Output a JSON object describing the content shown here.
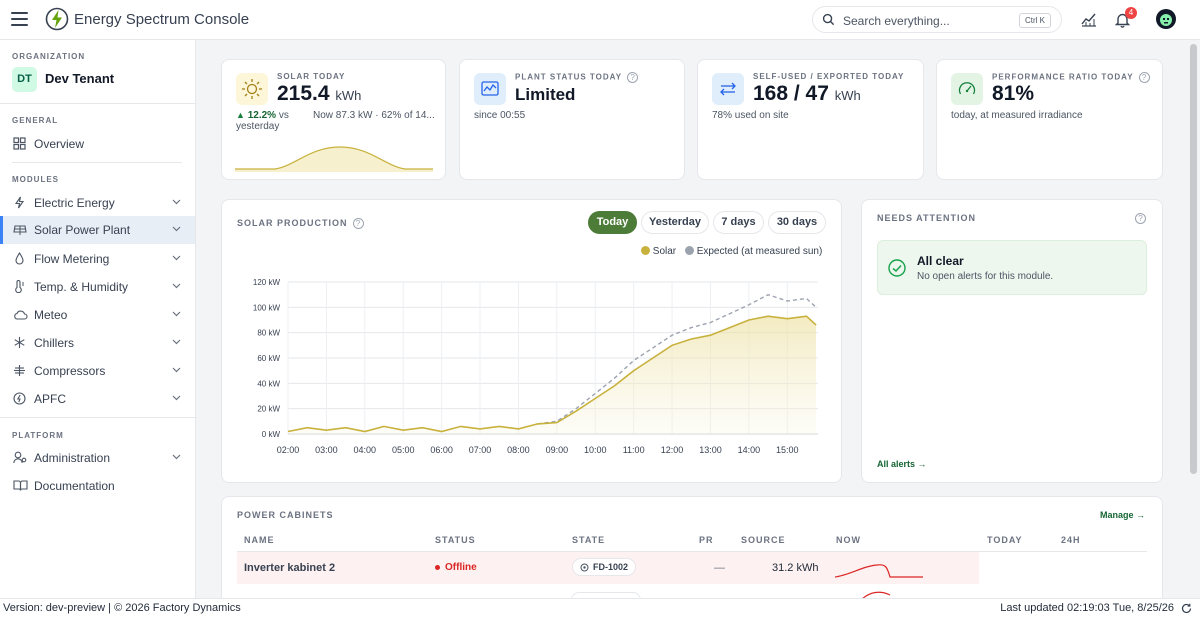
{
  "app": {
    "title": "Energy Spectrum Console"
  },
  "search": {
    "placeholder": "Search everything...",
    "shortcut": "Ctrl K"
  },
  "notifications": {
    "count": "4"
  },
  "sidebar": {
    "org_label": "ORGANIZATION",
    "tenant_initials": "DT",
    "tenant_name": "Dev Tenant",
    "general_label": "GENERAL",
    "overview": "Overview",
    "modules_label": "MODULES",
    "modules": [
      "Electric Energy",
      "Solar Power Plant",
      "Flow Metering",
      "Temp. & Humidity",
      "Meteo",
      "Chillers",
      "Compressors",
      "APFC"
    ],
    "platform_label": "PLATFORM",
    "administration": "Administration",
    "documentation": "Documentation"
  },
  "kpis": {
    "solar": {
      "label": "SOLAR TODAY",
      "value": "215.4",
      "unit": "kWh",
      "delta": "12.2%",
      "delta_suffix": "vs",
      "delta_line2": "yesterday",
      "now": "Now 87.3 kW · 62% of 14..."
    },
    "status": {
      "label": "PLANT STATUS TODAY",
      "value": "Limited",
      "sub": "since 00:55"
    },
    "self": {
      "label": "SELF-USED / EXPORTED TODAY",
      "value": "168 / 47",
      "unit": "kWh",
      "sub": "78% used on site"
    },
    "pr": {
      "label": "PERFORMANCE RATIO TODAY",
      "value": "81%",
      "sub": "today, at measured irradiance"
    }
  },
  "production": {
    "title": "SOLAR PRODUCTION",
    "tabs": [
      "Today",
      "Yesterday",
      "7 days",
      "30 days"
    ],
    "active_tab": "Today",
    "legend": [
      "Solar",
      "Expected (at measured sun)"
    ]
  },
  "chart_data": {
    "type": "line",
    "ylabel": "",
    "xlabel": "",
    "ylim": [
      0,
      120
    ],
    "y_ticks": [
      "0 kW",
      "20 kW",
      "40 kW",
      "60 kW",
      "80 kW",
      "100 kW",
      "120 kW"
    ],
    "x_ticks": [
      "02:00",
      "03:00",
      "04:00",
      "05:00",
      "06:00",
      "07:00",
      "08:00",
      "09:00",
      "10:00",
      "11:00",
      "12:00",
      "13:00",
      "14:00",
      "15:00"
    ],
    "series": [
      {
        "name": "Solar",
        "color": "#c8b13c",
        "x": [
          2.0,
          2.5,
          3.0,
          3.5,
          4.0,
          4.5,
          5.0,
          5.5,
          6.0,
          6.5,
          7.0,
          7.5,
          8.0,
          8.5,
          9.0,
          9.5,
          10.0,
          10.5,
          11.0,
          11.5,
          12.0,
          12.5,
          13.0,
          13.5,
          14.0,
          14.5,
          15.0,
          15.5,
          15.75
        ],
        "y": [
          2,
          5,
          3,
          5,
          2,
          6,
          3,
          5,
          2,
          6,
          4,
          6,
          4,
          8,
          9,
          18,
          28,
          38,
          50,
          60,
          70,
          75,
          78,
          84,
          90,
          93,
          91,
          93,
          86
        ]
      },
      {
        "name": "Expected (at measured sun)",
        "color": "#9ca3af",
        "dashed": true,
        "x": [
          8.5,
          9.0,
          9.5,
          10.0,
          10.5,
          11.0,
          11.5,
          12.0,
          12.5,
          13.0,
          13.5,
          14.0,
          14.5,
          15.0,
          15.5,
          15.75
        ],
        "y": [
          8,
          10,
          20,
          32,
          44,
          58,
          68,
          78,
          84,
          88,
          95,
          102,
          110,
          105,
          107,
          100
        ]
      }
    ],
    "grid": true
  },
  "attention": {
    "title": "NEEDS ATTENTION",
    "status_title": "All clear",
    "status_text": "No open alerts for this module.",
    "link": "All alerts →"
  },
  "cabinets": {
    "title": "POWER CABINETS",
    "manage": "Manage →",
    "columns": [
      "NAME",
      "STATUS",
      "STATE",
      "PR",
      "SOURCE",
      "NOW",
      "TODAY",
      "24H"
    ],
    "rows": [
      {
        "name": "Inverter kabinet 2",
        "status": "Offline",
        "state": "FD-1002",
        "pr": "—",
        "today": "31.2 kWh"
      }
    ]
  },
  "footer": {
    "version": "Version: dev-preview | © 2026 Factory Dynamics",
    "updated": "Last updated 02:19:03 Tue, 8/25/26"
  }
}
